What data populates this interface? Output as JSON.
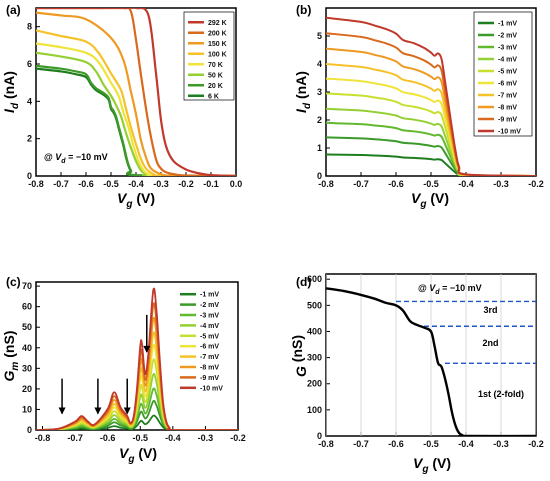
{
  "figure": {
    "panel_labels": [
      "(a)",
      "(b)",
      "(c)",
      "(d)"
    ],
    "x_axis_main": "V",
    "x_axis_sub": "g",
    "x_axis_unit": " (V)",
    "condition_prefix": "@ ",
    "condition_main": "V",
    "condition_sub": "d",
    "condition_value": " = −10 mV"
  },
  "colors": {
    "line_ramp": [
      "#1e7d1e",
      "#3c9a28",
      "#62b82e",
      "#94cf33",
      "#c7df2e",
      "#efe43a",
      "#f5c229",
      "#ee9a22",
      "#d9691c",
      "#c0392b"
    ],
    "temperature_ramp": [
      "#c0392b",
      "#d9691c",
      "#ee9a22",
      "#f5c229",
      "#efe43a",
      "#94cf33",
      "#3c9a28",
      "#1e7d1e"
    ],
    "dashed_guides": "#2255cc",
    "g_curve": "#000000"
  },
  "chart_data": [
    {
      "panel": "(a)",
      "type": "line",
      "xlabel": "V_g (V)",
      "ylabel": "I_d (nA)",
      "xlim": [
        -0.8,
        0.0
      ],
      "ylim": [
        0,
        9
      ],
      "xticks": [
        "-0.8",
        "-0.7",
        "-0.6",
        "-0.5",
        "-0.4",
        "-0.3",
        "-0.2",
        "-0.1",
        "0.0"
      ],
      "yticks": [
        "0",
        "2",
        "4",
        "6",
        "8"
      ],
      "legend_position": "top-right",
      "annotation": "@ V_d = -10 mV",
      "series": [
        {
          "name": "292 K",
          "x": [
            -0.8,
            -0.6,
            -0.45,
            -0.4,
            -0.35,
            -0.32,
            -0.3,
            -0.28,
            -0.25,
            -0.2,
            -0.15,
            -0.1,
            0.0
          ],
          "y": [
            9,
            9,
            9,
            9,
            8.6,
            5.5,
            3.0,
            1.6,
            0.8,
            0.35,
            0.15,
            0.05,
            0.0
          ]
        },
        {
          "name": "200 K",
          "x": [
            -0.8,
            -0.55,
            -0.45,
            -0.42,
            -0.4,
            -0.38,
            -0.35,
            -0.32,
            -0.3,
            -0.28,
            -0.25,
            -0.2,
            0.0
          ],
          "y": [
            9,
            9,
            9,
            8.8,
            7.3,
            5.4,
            2.8,
            0.9,
            0.4,
            0.2,
            0.1,
            0.03,
            0.0
          ]
        },
        {
          "name": "150 K",
          "x": [
            -0.8,
            -0.7,
            -0.6,
            -0.5,
            -0.45,
            -0.42,
            -0.4,
            -0.38,
            -0.36,
            -0.34,
            -0.3,
            -0.25,
            0.0
          ],
          "y": [
            8.75,
            8.6,
            8.4,
            7.4,
            6.2,
            4.5,
            3.3,
            1.9,
            1.0,
            0.4,
            0.1,
            0.02,
            0.0
          ]
        },
        {
          "name": "100 K",
          "x": [
            -0.8,
            -0.7,
            -0.6,
            -0.55,
            -0.5,
            -0.46,
            -0.44,
            -0.42,
            -0.4,
            -0.38,
            -0.36,
            -0.33,
            -0.3,
            0.0
          ],
          "y": [
            7.8,
            7.5,
            7.2,
            6.6,
            5.5,
            4.6,
            3.6,
            2.6,
            1.7,
            0.9,
            0.4,
            0.1,
            0.02,
            0.0
          ]
        },
        {
          "name": "70 K",
          "x": [
            -0.8,
            -0.7,
            -0.6,
            -0.55,
            -0.5,
            -0.47,
            -0.45,
            -0.43,
            -0.41,
            -0.39,
            -0.37,
            -0.35,
            -0.32,
            0.0
          ],
          "y": [
            7.1,
            6.9,
            6.6,
            6.1,
            5.0,
            4.3,
            3.4,
            2.6,
            1.6,
            0.8,
            0.3,
            0.1,
            0.02,
            0.0
          ]
        },
        {
          "name": "50 K",
          "x": [
            -0.8,
            -0.7,
            -0.6,
            -0.56,
            -0.53,
            -0.5,
            -0.48,
            -0.46,
            -0.44,
            -0.42,
            -0.4,
            -0.38,
            -0.36,
            -0.34,
            0.0
          ],
          "y": [
            6.6,
            6.4,
            6.1,
            5.6,
            4.9,
            4.3,
            3.8,
            3.2,
            2.3,
            1.5,
            0.8,
            0.3,
            0.1,
            0.02,
            0.0
          ]
        },
        {
          "name": "20 K",
          "x": [
            -0.8,
            -0.7,
            -0.64,
            -0.6,
            -0.58,
            -0.56,
            -0.53,
            -0.51,
            -0.5,
            -0.49,
            -0.48,
            -0.47,
            -0.46,
            -0.45,
            -0.44,
            -0.43,
            -0.42,
            -0.4,
            0.0
          ],
          "y": [
            5.9,
            5.75,
            5.6,
            5.45,
            5.0,
            4.7,
            4.45,
            4.2,
            3.7,
            3.5,
            3.2,
            2.7,
            2.2,
            1.7,
            1.1,
            0.6,
            0.3,
            0.05,
            0.0
          ]
        },
        {
          "name": "6 K",
          "x": [
            -0.8,
            -0.7,
            -0.64,
            -0.6,
            -0.58,
            -0.56,
            -0.53,
            -0.51,
            -0.5,
            -0.49,
            -0.48,
            -0.47,
            -0.46,
            -0.45,
            -0.44,
            -0.43,
            -0.42,
            -0.4,
            0.0
          ],
          "y": [
            5.75,
            5.6,
            5.45,
            5.3,
            4.9,
            4.6,
            4.35,
            4.1,
            3.6,
            3.4,
            3.1,
            2.6,
            2.1,
            1.6,
            1.0,
            0.55,
            0.25,
            0.03,
            0.0
          ]
        }
      ]
    },
    {
      "panel": "(b)",
      "type": "line",
      "xlabel": "V_g (V)",
      "ylabel": "I_d (nA)",
      "xlim": [
        -0.8,
        -0.2
      ],
      "ylim": [
        0,
        6
      ],
      "xticks": [
        "-0.8",
        "-0.7",
        "-0.6",
        "-0.5",
        "-0.4",
        "-0.3",
        "-0.2"
      ],
      "yticks": [
        "0",
        "1",
        "2",
        "3",
        "4",
        "5"
      ],
      "legend_position": "top-right",
      "shape_x": [
        -0.8,
        -0.7,
        -0.66,
        -0.63,
        -0.6,
        -0.58,
        -0.55,
        -0.52,
        -0.5,
        -0.49,
        -0.48,
        -0.47,
        -0.46,
        -0.45,
        -0.44,
        -0.43,
        -0.42,
        -0.4,
        -0.2
      ],
      "shape_y": [
        1.0,
        0.974,
        0.95,
        0.93,
        0.9,
        0.86,
        0.84,
        0.81,
        0.78,
        0.76,
        0.775,
        0.74,
        0.6,
        0.45,
        0.3,
        0.16,
        0.06,
        0.01,
        0.0
      ],
      "series": [
        {
          "name": "-1 mV",
          "level": 0.77
        },
        {
          "name": "-2 mV",
          "level": 1.38
        },
        {
          "name": "-3 mV",
          "level": 1.9
        },
        {
          "name": "-4 mV",
          "level": 2.4
        },
        {
          "name": "-5 mV",
          "level": 2.95
        },
        {
          "name": "-6 mV",
          "level": 3.48
        },
        {
          "name": "-7 mV",
          "level": 4.0
        },
        {
          "name": "-8 mV",
          "level": 4.55
        },
        {
          "name": "-9 mV",
          "level": 5.1
        },
        {
          "name": "-10 mV",
          "level": 5.65
        }
      ]
    },
    {
      "panel": "(c)",
      "type": "line",
      "xlabel": "V_g (V)",
      "ylabel": "G_m (nS)",
      "xlim": [
        -0.82,
        -0.2
      ],
      "ylim": [
        0,
        72
      ],
      "xticks": [
        "-0.8",
        "-0.7",
        "-0.6",
        "-0.5",
        "-0.4",
        "-0.3",
        "-0.2"
      ],
      "yticks": [
        "0",
        "10",
        "20",
        "30",
        "40",
        "50",
        "60",
        "70"
      ],
      "legend_position": "top-right",
      "shape_x": [
        -0.82,
        -0.75,
        -0.7,
        -0.68,
        -0.66,
        -0.64,
        -0.6,
        -0.58,
        -0.56,
        -0.54,
        -0.53,
        -0.52,
        -0.51,
        -0.5,
        -0.495,
        -0.485,
        -0.475,
        -0.46,
        -0.45,
        -0.44,
        -0.43,
        -0.42,
        -0.41,
        -0.4,
        -0.2
      ],
      "shape_y": [
        0.0,
        0.01,
        0.06,
        0.1,
        0.06,
        0.04,
        0.15,
        0.27,
        0.16,
        0.1,
        0.05,
        0.1,
        0.3,
        0.6,
        0.62,
        0.4,
        0.55,
        1.0,
        0.85,
        0.5,
        0.2,
        0.06,
        0.015,
        0.0,
        0.0
      ],
      "series": [
        {
          "name": "-1 mV",
          "peak": 7
        },
        {
          "name": "-2 mV",
          "peak": 14
        },
        {
          "name": "-3 mV",
          "peak": 20
        },
        {
          "name": "-4 mV",
          "peak": 27
        },
        {
          "name": "-5 mV",
          "peak": 34
        },
        {
          "name": "-6 mV",
          "peak": 41
        },
        {
          "name": "-7 mV",
          "peak": 47
        },
        {
          "name": "-8 mV",
          "peak": 54
        },
        {
          "name": "-9 mV",
          "peak": 61
        },
        {
          "name": "-10 mV",
          "peak": 68
        }
      ],
      "arrows_x": [
        -0.74,
        -0.63,
        -0.54,
        -0.48
      ]
    },
    {
      "panel": "(d)",
      "type": "line",
      "xlabel": "V_g (V)",
      "ylabel": "G (nS)",
      "xlim": [
        -0.8,
        -0.2
      ],
      "ylim": [
        0,
        620
      ],
      "xticks": [
        "-0.8",
        "-0.7",
        "-0.6",
        "-0.5",
        "-0.4",
        "-0.3",
        "-0.2"
      ],
      "yticks": [
        "0",
        "100",
        "200",
        "300",
        "400",
        "500",
        "600"
      ],
      "annotation": "@ V_d = -10 mV",
      "plateau_levels": [
        515,
        420,
        278
      ],
      "plateau_labels": [
        "3rd",
        "2nd",
        "1st (2-fold)"
      ],
      "series": [
        {
          "name": "G",
          "x": [
            -0.8,
            -0.75,
            -0.7,
            -0.66,
            -0.63,
            -0.6,
            -0.58,
            -0.56,
            -0.54,
            -0.52,
            -0.5,
            -0.49,
            -0.48,
            -0.47,
            -0.46,
            -0.45,
            -0.44,
            -0.43,
            -0.42,
            -0.41,
            -0.4,
            -0.2
          ],
          "y": [
            565,
            555,
            540,
            525,
            510,
            500,
            480,
            440,
            425,
            415,
            400,
            345,
            280,
            265,
            220,
            160,
            90,
            40,
            12,
            3,
            0,
            0
          ]
        }
      ]
    }
  ]
}
